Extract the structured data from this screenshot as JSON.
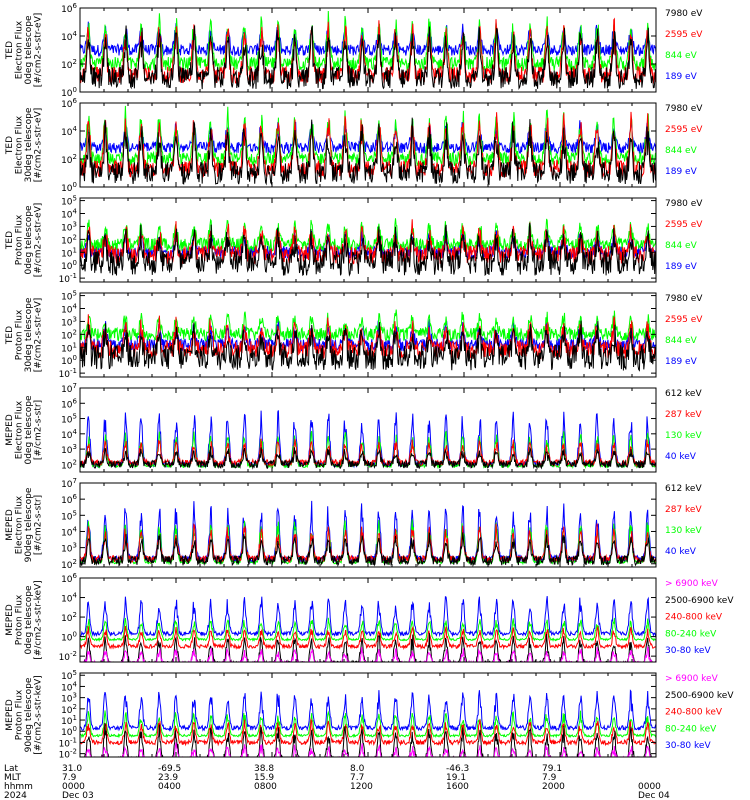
{
  "chart_data": [
    {
      "type": "line",
      "ylabel": [
        "TED",
        "Electron Flux",
        "0deg telescope",
        "[#/cm2-s-str-eV]"
      ],
      "yscale": "log",
      "yticks": [
        {
          "exp": "0",
          "v": 0
        },
        {
          "exp": "2",
          "v": 2
        },
        {
          "exp": "4",
          "v": 4
        },
        {
          "exp": "6",
          "v": 6
        }
      ],
      "ylim_log": [
        0,
        6
      ],
      "series": [
        {
          "name": "7980 eV",
          "color": "#000000",
          "base": 1.0,
          "peak": 4.6,
          "noise": 0.8
        },
        {
          "name": "2595 eV",
          "color": "#ff0000",
          "base": 1.2,
          "peak": 5.0,
          "noise": 0.6
        },
        {
          "name": "844 eV",
          "color": "#00ff00",
          "base": 2.0,
          "peak": 5.4,
          "noise": 0.5
        },
        {
          "name": "189 eV",
          "color": "#0000ff",
          "base": 3.0,
          "peak": 4.8,
          "noise": 0.4
        }
      ]
    },
    {
      "type": "line",
      "ylabel": [
        "TED",
        "Electron Flux",
        "30deg telescope",
        "[#/cm2-s-str-eV]"
      ],
      "yscale": "log",
      "yticks": [
        {
          "exp": "0",
          "v": 0
        },
        {
          "exp": "2",
          "v": 2
        },
        {
          "exp": "4",
          "v": 4
        },
        {
          "exp": "6",
          "v": 6
        }
      ],
      "ylim_log": [
        0,
        6
      ],
      "series": [
        {
          "name": "7980 eV",
          "color": "#000000",
          "base": 1.0,
          "peak": 4.4,
          "noise": 0.8
        },
        {
          "name": "2595 eV",
          "color": "#ff0000",
          "base": 1.3,
          "peak": 5.2,
          "noise": 0.6
        },
        {
          "name": "844 eV",
          "color": "#00ff00",
          "base": 2.0,
          "peak": 5.5,
          "noise": 0.5
        },
        {
          "name": "189 eV",
          "color": "#0000ff",
          "base": 2.8,
          "peak": 4.6,
          "noise": 0.4
        }
      ]
    },
    {
      "type": "line",
      "ylabel": [
        "TED",
        "Proton Flux",
        "0deg telescope",
        "[#/cm2-s-str-eV]"
      ],
      "yscale": "log",
      "yticks": [
        {
          "exp": "-1",
          "v": -1
        },
        {
          "exp": "0",
          "v": 0
        },
        {
          "exp": "1",
          "v": 1
        },
        {
          "exp": "2",
          "v": 2
        },
        {
          "exp": "3",
          "v": 3
        },
        {
          "exp": "4",
          "v": 4
        },
        {
          "exp": "5",
          "v": 5
        }
      ],
      "ylim_log": [
        -1.3,
        5.2
      ],
      "series": [
        {
          "name": "7980 eV",
          "color": "#000000",
          "base": 0.2,
          "peak": 2.5,
          "noise": 1.0
        },
        {
          "name": "2595 eV",
          "color": "#ff0000",
          "base": 0.8,
          "peak": 3.0,
          "noise": 0.7
        },
        {
          "name": "844 eV",
          "color": "#00ff00",
          "base": 1.6,
          "peak": 3.4,
          "noise": 0.5
        },
        {
          "name": "189 eV",
          "color": "#0000ff",
          "base": 1.0,
          "peak": 2.6,
          "noise": 0.5
        }
      ]
    },
    {
      "type": "line",
      "ylabel": [
        "TED",
        "Proton Flux",
        "30deg telescope",
        "[#/cm2-s-str-eV]"
      ],
      "yscale": "log",
      "yticks": [
        {
          "exp": "-1",
          "v": -1
        },
        {
          "exp": "0",
          "v": 0
        },
        {
          "exp": "1",
          "v": 1
        },
        {
          "exp": "2",
          "v": 2
        },
        {
          "exp": "3",
          "v": 3
        },
        {
          "exp": "4",
          "v": 4
        },
        {
          "exp": "5",
          "v": 5
        }
      ],
      "ylim_log": [
        -1.3,
        5.2
      ],
      "series": [
        {
          "name": "7980 eV",
          "color": "#000000",
          "base": 0.2,
          "peak": 2.6,
          "noise": 1.0
        },
        {
          "name": "2595 eV",
          "color": "#ff0000",
          "base": 0.8,
          "peak": 3.0,
          "noise": 0.7
        },
        {
          "name": "844 eV",
          "color": "#00ff00",
          "base": 2.0,
          "peak": 3.6,
          "noise": 0.5
        },
        {
          "name": "189 eV",
          "color": "#0000ff",
          "base": 1.2,
          "peak": 2.8,
          "noise": 0.5
        }
      ]
    },
    {
      "type": "line",
      "ylabel": [
        "MEPED",
        "Electron Flux",
        "0deg telescope",
        "[#/cm2-s-str]"
      ],
      "yscale": "log",
      "yticks": [
        {
          "exp": "2",
          "v": 2
        },
        {
          "exp": "3",
          "v": 3
        },
        {
          "exp": "4",
          "v": 4
        },
        {
          "exp": "5",
          "v": 5
        },
        {
          "exp": "6",
          "v": 6
        },
        {
          "exp": "7",
          "v": 7
        }
      ],
      "ylim_log": [
        1.5,
        7
      ],
      "series": [
        {
          "name": "612 keV",
          "color": "#000000",
          "base": 2.0,
          "peak": 3.0,
          "noise": 0.25
        },
        {
          "name": "287 keV",
          "color": "#ff0000",
          "base": 2.1,
          "peak": 3.6,
          "noise": 0.2
        },
        {
          "name": "130 keV",
          "color": "#00ff00",
          "base": 1.9,
          "peak": 4.2,
          "noise": 0.1
        },
        {
          "name": "40 keV",
          "color": "#0000ff",
          "base": 2.0,
          "peak": 5.6,
          "noise": 0.15
        }
      ]
    },
    {
      "type": "line",
      "ylabel": [
        "MEPED",
        "Electron Flux",
        "90deg telescope",
        "[#/cm2-s-str]"
      ],
      "yscale": "log",
      "yticks": [
        {
          "exp": "2",
          "v": 2
        },
        {
          "exp": "3",
          "v": 3
        },
        {
          "exp": "4",
          "v": 4
        },
        {
          "exp": "5",
          "v": 5
        },
        {
          "exp": "6",
          "v": 6
        },
        {
          "exp": "7",
          "v": 7
        }
      ],
      "ylim_log": [
        1.8,
        7
      ],
      "series": [
        {
          "name": "612 keV",
          "color": "#000000",
          "base": 2.2,
          "peak": 3.8,
          "noise": 0.3
        },
        {
          "name": "287 keV",
          "color": "#ff0000",
          "base": 2.3,
          "peak": 4.4,
          "noise": 0.2
        },
        {
          "name": "130 keV",
          "color": "#00ff00",
          "base": 2.1,
          "peak": 4.8,
          "noise": 0.1
        },
        {
          "name": "40 keV",
          "color": "#0000ff",
          "base": 2.3,
          "peak": 5.8,
          "noise": 0.2
        }
      ]
    },
    {
      "type": "line",
      "ylabel": [
        "MEPED",
        "Proton Flux",
        "0deg telescope",
        "[#/cm2-s-str-keV]"
      ],
      "yscale": "log",
      "yticks": [
        {
          "exp": "-2",
          "v": -2
        },
        {
          "exp": "0",
          "v": 0
        },
        {
          "exp": "2",
          "v": 2
        },
        {
          "exp": "4",
          "v": 4
        },
        {
          "exp": "6",
          "v": 6
        }
      ],
      "ylim_log": [
        -2.6,
        6
      ],
      "series": [
        {
          "name": "> 6900 keV",
          "color": "#ff00ff",
          "base": -2.8,
          "peak": -1.2,
          "noise": 0.3
        },
        {
          "name": "2500-6900 keV",
          "color": "#000000",
          "base": -2.8,
          "peak": 0.2,
          "noise": 0.3
        },
        {
          "name": "240-800 keV",
          "color": "#ff0000",
          "base": -1.0,
          "peak": 1.0,
          "noise": 0.2
        },
        {
          "name": "80-240 keV",
          "color": "#00ff00",
          "base": -0.3,
          "peak": 2.0,
          "noise": 0.1
        },
        {
          "name": "30-80 keV",
          "color": "#0000ff",
          "base": 0.3,
          "peak": 4.2,
          "noise": 0.2
        }
      ]
    },
    {
      "type": "line",
      "ylabel": [
        "MEPED",
        "Proton Flux",
        "90deg telescope",
        "[#/cm2-s-str-keV]"
      ],
      "yscale": "log",
      "yticks": [
        {
          "exp": "-2",
          "v": -2
        },
        {
          "exp": "-1",
          "v": -1
        },
        {
          "exp": "0",
          "v": 0
        },
        {
          "exp": "1",
          "v": 1
        },
        {
          "exp": "2",
          "v": 2
        },
        {
          "exp": "3",
          "v": 3
        },
        {
          "exp": "4",
          "v": 4
        },
        {
          "exp": "5",
          "v": 5
        }
      ],
      "ylim_log": [
        -2.3,
        5.2
      ],
      "series": [
        {
          "name": "> 6900 keV",
          "color": "#ff00ff",
          "base": -2.6,
          "peak": -1.3,
          "noise": 0.3
        },
        {
          "name": "2500-6900 keV",
          "color": "#000000",
          "base": -2.6,
          "peak": 0.5,
          "noise": 0.3
        },
        {
          "name": "240-800 keV",
          "color": "#ff0000",
          "base": -1.0,
          "peak": 1.0,
          "noise": 0.2
        },
        {
          "name": "80-240 keV",
          "color": "#00ff00",
          "base": -0.4,
          "peak": 1.8,
          "noise": 0.1
        },
        {
          "name": "30-80 keV",
          "color": "#0000ff",
          "base": 0.3,
          "peak": 3.8,
          "noise": 0.2
        }
      ]
    }
  ],
  "time_axis": {
    "row_labels": [
      "Lat",
      "MLT",
      "hhmm",
      "2024"
    ],
    "columns": [
      {
        "lat": "31.0",
        "mlt": "7.9",
        "hhmm": "0000",
        "date": "Dec 03"
      },
      {
        "lat": "-69.5",
        "mlt": "23.9",
        "hhmm": "0400",
        "date": ""
      },
      {
        "lat": "38.8",
        "mlt": "15.9",
        "hhmm": "0800",
        "date": ""
      },
      {
        "lat": "8.0",
        "mlt": "7.7",
        "hhmm": "1200",
        "date": ""
      },
      {
        "lat": "-46.3",
        "mlt": "19.1",
        "hhmm": "1600",
        "date": ""
      },
      {
        "lat": "79.1",
        "mlt": "7.9",
        "hhmm": "2000",
        "date": ""
      },
      {
        "lat": "",
        "mlt": "",
        "hhmm": "0000",
        "date": "Dec 04"
      }
    ],
    "ticks_hours": [
      0,
      4,
      8,
      12,
      16,
      20,
      24
    ],
    "orbit_peak_hours": [
      0.35,
      1.05,
      1.9,
      2.55,
      3.3,
      4.0,
      4.75,
      5.45,
      6.15,
      6.85,
      7.55,
      8.25,
      8.95,
      9.65,
      10.35,
      11.05,
      11.75,
      12.45,
      13.15,
      13.85,
      14.55,
      15.25,
      15.95,
      16.65,
      17.35,
      18.05,
      18.75,
      19.45,
      20.15,
      20.85,
      21.55,
      22.25,
      22.95,
      23.65
    ]
  }
}
